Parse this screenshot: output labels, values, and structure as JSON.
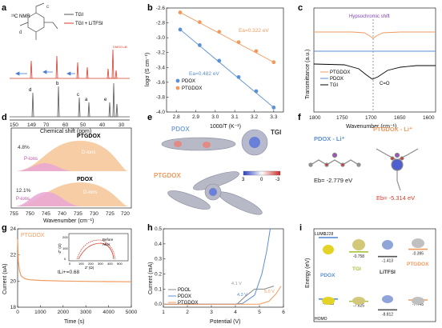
{
  "panels": {
    "a": {
      "letter": "a",
      "nmr_label": "¹³C NMR",
      "legend": [
        "TGI",
        "TGI + LiTFSI"
      ],
      "xlabel": "Chemical shift (ppm)",
      "xticks": [
        "150",
        "149",
        "70",
        "60",
        "50",
        "40",
        "30"
      ],
      "peak_labels": [
        "d",
        "b",
        "c",
        "a",
        "e"
      ],
      "solvent": "DMSO-d6",
      "colors": {
        "tgi": "#555555",
        "tgi_li": "#d93b2b"
      }
    },
    "b": {
      "letter": "b",
      "chart_data": {
        "type": "scatter",
        "xlabel": "1000/T (K⁻¹)",
        "ylabel": "logσ (S cm⁻¹)",
        "xlim": [
          2.75,
          3.35
        ],
        "ylim": [
          -4.0,
          -2.6
        ],
        "xticks": [
          2.8,
          2.9,
          3.0,
          3.1,
          3.2,
          3.3
        ],
        "yticks": [
          -4.0,
          -3.8,
          -3.6,
          -3.4,
          -3.2,
          -3.0,
          -2.8,
          -2.6
        ],
        "series": [
          {
            "name": "PDOX",
            "color": "#5b8fd6",
            "x": [
              2.82,
              2.92,
              3.02,
              3.12,
              3.21,
              3.3
            ],
            "y": [
              -2.89,
              -3.1,
              -3.31,
              -3.53,
              -3.72,
              -3.94
            ]
          },
          {
            "name": "PTGDOX",
            "color": "#f09a5e",
            "x": [
              2.82,
              2.92,
              3.02,
              3.12,
              3.21,
              3.3
            ],
            "y": [
              -2.66,
              -2.79,
              -2.92,
              -3.06,
              -3.18,
              -3.33
            ]
          }
        ],
        "annotations": [
          "Ea=0.322 eV",
          "Ea=0.482 eV"
        ]
      }
    },
    "c": {
      "letter": "c",
      "annotation": "Hypsochromic shift",
      "peak": "C=O",
      "ylabel": "Transmittance (a.u.)",
      "xlabel": "Wavenumber (cm⁻¹)",
      "xticks": [
        "1800",
        "1750",
        "1700",
        "1650",
        "1600"
      ],
      "legend": [
        "PTGDOX",
        "PDOX",
        "TGI"
      ],
      "colors": {
        "ptgdox": "#f09a5e",
        "pdox": "#5b8fd6",
        "tgi": "#000000"
      }
    },
    "d": {
      "letter": "d",
      "top_title": "PTGDOX",
      "bottom_title": "PDOX",
      "top_pct": "4.8%",
      "bottom_pct": "12.1%",
      "p_ions": "P-ions",
      "d_ions": "D-ions",
      "xlabel": "Wavenumber (cm⁻¹)",
      "xticks": [
        "755",
        "750",
        "745",
        "740",
        "735",
        "730",
        "725",
        "720"
      ]
    },
    "e": {
      "letter": "e",
      "labels": [
        "PDOX",
        "TGI",
        "PTGDOX"
      ],
      "scale": [
        "3",
        "0",
        "-3"
      ]
    },
    "f": {
      "letter": "f",
      "left_label": "PDOX - Li⁺",
      "right_label": "PTGDOX - Li⁺",
      "left_eb": "Eb= -2.779 eV",
      "right_eb": "Eb= -5.314 eV"
    },
    "g": {
      "letter": "g",
      "chart_data": {
        "type": "line",
        "xlabel": "Time (s)",
        "ylabel": "Current (uA)",
        "xlim": [
          0,
          5000
        ],
        "ylim": [
          18,
          24
        ],
        "xticks": [
          0,
          1000,
          2000,
          3000,
          4000,
          5000
        ],
        "yticks": [
          18,
          20,
          22,
          24
        ],
        "label": "PTGDOX",
        "tli": "tLi+=0.68",
        "series": [
          {
            "color": "#f09a5e",
            "x": [
              0,
              30,
              80,
              150,
              300,
              500,
              1000,
              2000,
              3000,
              4000,
              5000
            ],
            "y": [
              23.2,
              21.5,
              20.8,
              20.4,
              20.2,
              20.1,
              20.05,
              20.0,
              19.98,
              19.96,
              19.95
            ]
          }
        ],
        "inset": {
          "xlabel": "Z' (Ω)",
          "ylabel": "-Z'' (Ω)",
          "xticks": [
            "0",
            "100",
            "200",
            "300",
            "400",
            "500"
          ],
          "yticks": [
            "0",
            "100",
            "200"
          ],
          "legend": [
            "Before",
            "After"
          ]
        }
      }
    },
    "h": {
      "letter": "h",
      "chart_data": {
        "type": "line",
        "xlabel": "Potential (V)",
        "ylabel": "Current (mA)",
        "xlim": [
          1,
          6
        ],
        "ylim": [
          -0.02,
          0.5
        ],
        "xticks": [
          1,
          2,
          3,
          4,
          5,
          6
        ],
        "yticks": [
          0.0,
          0.1,
          0.2,
          0.3,
          0.4,
          0.5
        ],
        "series": [
          {
            "name": "PDOL",
            "color": "#888888",
            "x": [
              1,
              2,
              3,
              4,
              4.1,
              4.4,
              4.8,
              5.2,
              5.6
            ],
            "y": [
              0.0,
              0.0,
              0.0,
              0.0,
              0.005,
              0.05,
              0.1,
              0.1,
              0.12
            ]
          },
          {
            "name": "PDOX",
            "color": "#5b8fd6",
            "x": [
              1,
              2,
              3,
              4,
              4.3,
              4.8,
              5.1,
              5.3,
              5.45
            ],
            "y": [
              0.0,
              0.0,
              0.0,
              0.0,
              0.005,
              0.06,
              0.2,
              0.35,
              0.5
            ]
          },
          {
            "name": "PTGDOX",
            "color": "#f09a5e",
            "x": [
              1,
              2,
              3,
              4,
              5.0,
              5.4,
              5.7,
              5.9
            ],
            "y": [
              0.0,
              0.0,
              0.0,
              0.0,
              0.0,
              0.02,
              0.07,
              0.12
            ]
          }
        ],
        "annotations": [
          "4.1 V",
          "4.3 V",
          "5.0 V"
        ]
      }
    },
    "i": {
      "letter": "i",
      "ylabel": "Energy (eV)",
      "lumo": "LUMO",
      "homo": "HOMO",
      "chart_data": {
        "type": "bar",
        "categories": [
          "PDOX",
          "TGI",
          "LiTFSI",
          "PTGDOX"
        ],
        "lumo": [
          1.228,
          -0.758,
          -1.413,
          -0.395
        ],
        "homo": [
          -7.313,
          -7.625,
          -8.812,
          -7.445
        ],
        "colors": [
          "#5b8fd6",
          "#a6c23b",
          "#555555",
          "#f09a5e"
        ]
      }
    }
  }
}
